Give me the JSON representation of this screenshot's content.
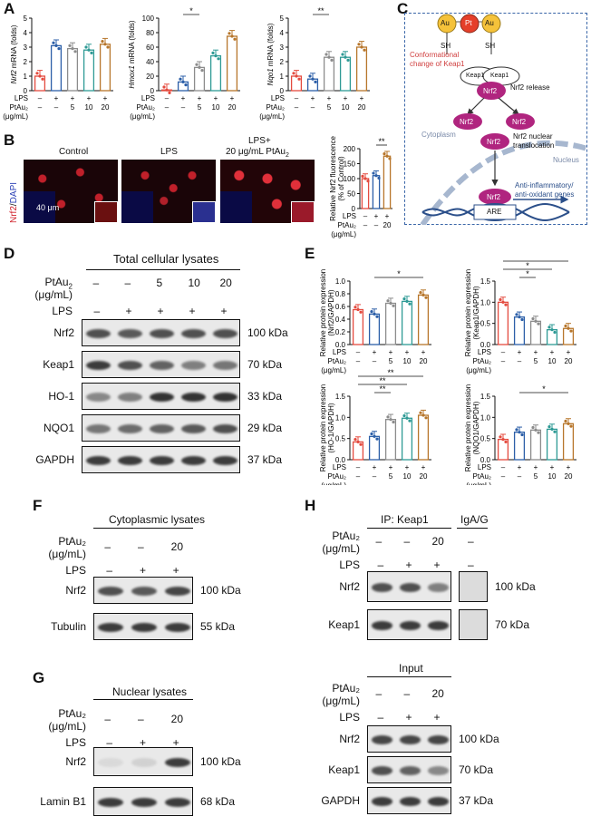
{
  "panels": {
    "A": "A",
    "B": "B",
    "C": "C",
    "D": "D",
    "E": "E",
    "F": "F",
    "G": "G",
    "H": "H"
  },
  "common": {
    "lps": "LPS",
    "ptau_label": "PtAu",
    "sub2": "2",
    "unit": "(μg/mL)",
    "minus": "–",
    "plus": "+",
    "doses": [
      "5",
      "10",
      "20"
    ]
  },
  "panelA": {
    "charts": [
      {
        "ylabel_gene": "Nrf2",
        "ylabel_rest": " mRNA (folds)",
        "yticks": [
          "0",
          "1",
          "2",
          "3",
          "4",
          "5"
        ],
        "ylim": [
          0,
          5
        ],
        "values": [
          1.0,
          3.1,
          2.9,
          2.8,
          3.2
        ],
        "sig": []
      },
      {
        "ylabel_gene": "Hmox1",
        "ylabel_rest": " mRNA (folds)",
        "yticks": [
          "0",
          "20",
          "40",
          "60",
          "80",
          "100"
        ],
        "ylim": [
          0,
          100
        ],
        "values": [
          1,
          12,
          32,
          48,
          75
        ],
        "sig": [
          "*",
          "**",
          "**"
        ]
      },
      {
        "ylabel_gene": "Nqo1",
        "ylabel_rest": " mRNA (folds)",
        "yticks": [
          "0",
          "1",
          "2",
          "3",
          "4",
          "5"
        ],
        "ylim": [
          0,
          5
        ],
        "values": [
          1.0,
          0.8,
          2.3,
          2.3,
          3.0
        ],
        "sig": [
          "**",
          "**",
          "**"
        ]
      }
    ]
  },
  "panelB": {
    "stain_red": "Nrf2",
    "stain_sep": "/",
    "stain_blue": "DAPI",
    "col_control": "Control",
    "col_lps": "LPS",
    "col_combo_1": "LPS+",
    "col_combo_2": "20 μg/mL PtAu",
    "scale": "40 μm",
    "bar_ylabel_1": "Relative Nrf2 fluorescence",
    "bar_ylabel_2": "(% of Control)",
    "yticks": [
      "0",
      "50",
      "100",
      "150",
      "200"
    ],
    "values": [
      100,
      110,
      175
    ],
    "sig": "**",
    "ptau_vals": [
      "–",
      "–",
      "20"
    ],
    "lps_vals": [
      "–",
      "+",
      "+"
    ]
  },
  "panelC": {
    "au1": "Au",
    "pt": "Pt",
    "au2": "Au",
    "sh1": "SH",
    "sh2": "SH",
    "conf1": "Conformational",
    "conf2": "change of Keap1",
    "keap": "Keap1",
    "nrf2": "Nrf2",
    "release": "Nrf2 release",
    "cytoplasm": "Cytoplasm",
    "transloc1": "Nrf2 nuclear",
    "transloc2": "translocation",
    "nucleus": "Nucleus",
    "anti1": "Anti-inflammatory/",
    "anti2": "anti-oxidant genes",
    "are": "ARE",
    "color_outline": "#3a66a8",
    "color_nrf2": "#b0257f",
    "color_pt": "#e53f2a",
    "color_au": "#f5c23a"
  },
  "panelD": {
    "title": "Total cellular lysates",
    "ptau_vals": [
      "–",
      "–",
      "5",
      "10",
      "20"
    ],
    "lps_vals": [
      "–",
      "+",
      "+",
      "+",
      "+"
    ],
    "rows": [
      {
        "name": "Nrf2",
        "kda": "100 kDa"
      },
      {
        "name": "Keap1",
        "kda": "70 kDa"
      },
      {
        "name": "HO-1",
        "kda": "33 kDa"
      },
      {
        "name": "NQO1",
        "kda": "29 kDa"
      },
      {
        "name": "GAPDH",
        "kda": "37 kDa"
      }
    ]
  },
  "panelE": {
    "charts": [
      {
        "yl1": "Relative protein expression",
        "yl2": "(Nrf2/GAPDH)",
        "yticks": [
          "0.0",
          "0.2",
          "0.4",
          "0.6",
          "0.8",
          "1.0"
        ],
        "ylim": [
          0,
          1.0
        ],
        "values": [
          0.55,
          0.48,
          0.65,
          0.68,
          0.78
        ],
        "sig": [
          "*"
        ]
      },
      {
        "yl1": "Relative protein expression",
        "yl2": "(Keap1/GAPDH)",
        "yticks": [
          "0.0",
          "0.5",
          "1.0",
          "1.5"
        ],
        "ylim": [
          0,
          1.5
        ],
        "values": [
          1.0,
          0.65,
          0.55,
          0.35,
          0.38
        ],
        "sig": [
          "*",
          "*",
          "*"
        ]
      },
      {
        "yl1": "Relative protein expression",
        "yl2": "(HO-1/GAPDH)",
        "yticks": [
          "0.0",
          "0.5",
          "1.0",
          "1.5"
        ],
        "ylim": [
          0,
          1.5
        ],
        "values": [
          0.42,
          0.55,
          0.95,
          0.98,
          1.05
        ],
        "sig": [
          "**",
          "**",
          "**"
        ]
      },
      {
        "yl1": "Relative protein expression",
        "yl2": "(NQO1/GAPDH)",
        "yticks": [
          "0.0",
          "0.5",
          "1.0",
          "1.5"
        ],
        "ylim": [
          0,
          1.5
        ],
        "values": [
          0.48,
          0.65,
          0.7,
          0.72,
          0.85
        ],
        "sig": [
          "*"
        ]
      }
    ]
  },
  "panelF": {
    "title": "Cytoplasmic lysates",
    "ptau_vals": [
      "–",
      "–",
      "20"
    ],
    "lps_vals": [
      "–",
      "+",
      "+"
    ],
    "rows": [
      {
        "name": "Nrf2",
        "kda": "100 kDa"
      },
      {
        "name": "Tubulin",
        "kda": "55 kDa"
      }
    ]
  },
  "panelG": {
    "title": "Nuclear lysates",
    "ptau_vals": [
      "–",
      "–",
      "20"
    ],
    "lps_vals": [
      "–",
      "+",
      "+"
    ],
    "rows": [
      {
        "name": "Nrf2",
        "kda": "100 kDa"
      },
      {
        "name": "Lamin B1",
        "kda": "68 kDa"
      }
    ]
  },
  "panelH": {
    "ip_title": "IP: Keap1",
    "igag": "IgA/G",
    "ptau_vals": [
      "–",
      "–",
      "20",
      "–"
    ],
    "lps_vals": [
      "–",
      "+",
      "+",
      "–"
    ],
    "ip_rows": [
      {
        "name": "Nrf2",
        "kda": "100 kDa"
      },
      {
        "name": "Keap1",
        "kda": "70 kDa"
      }
    ],
    "input_title": "Input",
    "input_ptau_vals": [
      "–",
      "–",
      "20"
    ],
    "input_lps_vals": [
      "–",
      "+",
      "+"
    ],
    "input_rows": [
      {
        "name": "Nrf2",
        "kda": "100 kDa"
      },
      {
        "name": "Keap1",
        "kda": "70 kDa"
      },
      {
        "name": "GAPDH",
        "kda": "37 kDa"
      }
    ]
  },
  "colors": {
    "c0": "#e44b3f",
    "c1": "#2c5fa8",
    "c2": "#8c8c8c",
    "c3": "#2e9a95",
    "c4": "#b7762b"
  }
}
